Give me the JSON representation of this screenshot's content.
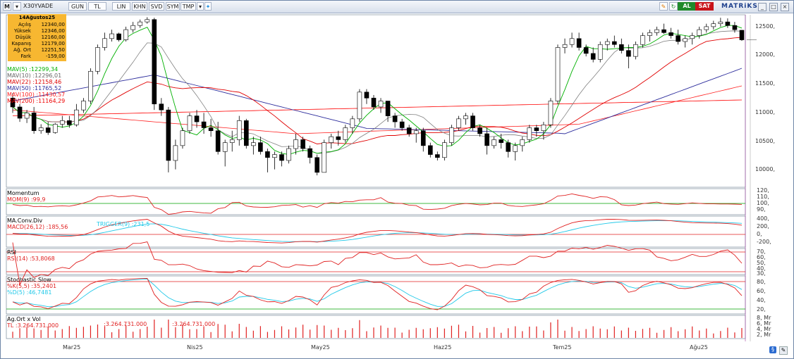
{
  "toolbar": {
    "symbol": "X30YVADE",
    "buttons": [
      "GUN",
      "TL",
      "LIN",
      "KHN",
      "SVD",
      "SYM",
      "TMP"
    ],
    "buy": "AL",
    "sell": "SAT",
    "brand": "MATRiKS"
  },
  "info_box": {
    "date": "14Ağustos25",
    "rows": [
      {
        "label": "Açılış",
        "value": "12340,00"
      },
      {
        "label": "Yüksek",
        "value": "12346,00"
      },
      {
        "label": "Düşük",
        "value": "12160,00"
      },
      {
        "label": "Kapanış",
        "value": "12179,00"
      },
      {
        "label": "Ağ. Ort",
        "value": "12251,50"
      },
      {
        "label": "Fark",
        "value": "-159,00"
      }
    ]
  },
  "indicator_labels": {
    "mav5": "MAV(5)",
    "mav5_val": ":12299,34",
    "mav10": "MAV(10)",
    "mav10_val": ":12296,01",
    "mav22": "MAV(22)",
    "mav22_val": ":12158,46",
    "mav50": "MAV(50)",
    "mav50_val": ":11765,52",
    "mav100": "MAV(100)",
    "mav100_val": ":11430,57",
    "mav200": "MAV(200)",
    "mav200_val": ":11164,29",
    "momentum": "Momentum",
    "mom": "MOM(9)",
    "mom_val": ":99,9",
    "macd_title": "MA.Conv.Div",
    "macd": "MACD(26,12)",
    "macd_val": ":185,56",
    "trigger": "TRIGGER(9)",
    "trigger_val": ":231,5",
    "rsi_title": "RSI",
    "rsi": "RSI(14)",
    "rsi_val": ":53,8068",
    "stoch_title": "Stochastic Slow",
    "k": "%K(5,5)",
    "k_val": ":35,2401",
    "d": "%D(5)",
    "d_val": ":46,7481",
    "vol_title": "Ag.Ort x Vol",
    "vol": "TL",
    "vol_val": ":3.264.731.000",
    "vol_val2": ":3.264.731.000",
    "vol_val3": ":3.264.731.000"
  },
  "axes": {
    "price_ticks": [
      "12500,",
      "12000,",
      "11500,",
      "11000,",
      "10500,",
      "10000,"
    ],
    "mom_ticks": [
      "120,",
      "110,",
      "100,",
      "90,"
    ],
    "macd_ticks": [
      "400,",
      "200,",
      "0,",
      "-200,"
    ],
    "rsi_ticks": [
      "70,",
      "60,",
      "50,",
      "40,",
      "30,"
    ],
    "stoch_ticks": [
      "80,",
      "60,",
      "40,",
      "20,"
    ],
    "vol_ticks": [
      "8, Mr",
      "6, Mr",
      "4, Mr",
      "2, Mr"
    ],
    "month_labels": [
      "Mar25",
      "Nis25",
      "May25",
      "Haz25",
      "Tem25",
      "Ağu25"
    ]
  },
  "colors": {
    "up": "#ffffff",
    "down": "#000000",
    "mav5": "#00b000",
    "mav10": "#808080",
    "mav22": "#e00000",
    "mav50": "#2c2c9c",
    "mav100": "#ff2020",
    "mav200": "#ff0000",
    "cyan": "#20c8e8",
    "red": "#e02020",
    "green": "#00a000"
  },
  "chart_data": {
    "type": "candlestick",
    "ylim": [
      9700,
      12600
    ],
    "series_ohlc": [
      [
        11200,
        11280,
        10950,
        11050
      ],
      [
        11050,
        11100,
        10800,
        10860
      ],
      [
        10860,
        11000,
        10780,
        10950
      ],
      [
        10950,
        11050,
        10600,
        10650
      ],
      [
        10650,
        10760,
        10600,
        10700
      ],
      [
        10700,
        10800,
        10580,
        10620
      ],
      [
        10620,
        10780,
        10600,
        10760
      ],
      [
        10760,
        10900,
        10700,
        10820
      ],
      [
        10820,
        10900,
        10700,
        10750
      ],
      [
        10750,
        11100,
        10720,
        11000
      ],
      [
        11000,
        11200,
        10950,
        11150
      ],
      [
        11150,
        11700,
        11100,
        11650
      ],
      [
        11650,
        12100,
        11600,
        12050
      ],
      [
        12050,
        12300,
        12000,
        12200
      ],
      [
        12200,
        12350,
        12150,
        12280
      ],
      [
        12280,
        12300,
        12150,
        12180
      ],
      [
        12180,
        12400,
        12150,
        12350
      ],
      [
        12350,
        12480,
        12300,
        12420
      ],
      [
        12420,
        12520,
        12380,
        12480
      ],
      [
        12480,
        12560,
        12450,
        12520
      ],
      [
        12520,
        12550,
        11000,
        11100
      ],
      [
        11100,
        11200,
        10900,
        11000
      ],
      [
        11000,
        11050,
        9950,
        10150
      ],
      [
        10150,
        10500,
        10000,
        10400
      ],
      [
        10400,
        10700,
        10350,
        10650
      ],
      [
        10650,
        10950,
        10600,
        10900
      ],
      [
        10900,
        11000,
        10700,
        10800
      ],
      [
        10800,
        10950,
        10600,
        10700
      ],
      [
        10700,
        10850,
        10550,
        10650
      ],
      [
        10650,
        10800,
        10250,
        10300
      ],
      [
        10300,
        10500,
        10050,
        10450
      ],
      [
        10450,
        10650,
        10300,
        10500
      ],
      [
        10500,
        10900,
        10400,
        10820
      ],
      [
        10820,
        10850,
        10350,
        10400
      ],
      [
        10400,
        10550,
        10250,
        10450
      ],
      [
        10450,
        10550,
        10250,
        10300
      ],
      [
        10300,
        10350,
        9950,
        10200
      ],
      [
        10200,
        10300,
        10000,
        10250
      ],
      [
        10250,
        10300,
        10050,
        10150
      ],
      [
        10150,
        10400,
        10100,
        10350
      ],
      [
        10350,
        10600,
        10250,
        10500
      ],
      [
        10500,
        10550,
        10300,
        10350
      ],
      [
        10350,
        10400,
        10100,
        10200
      ],
      [
        10200,
        10250,
        9900,
        9950
      ],
      [
        9950,
        10500,
        9950,
        10450
      ],
      [
        10450,
        10600,
        10350,
        10550
      ],
      [
        10550,
        10650,
        10400,
        10500
      ],
      [
        10500,
        10750,
        10450,
        10700
      ],
      [
        10700,
        10900,
        10600,
        10850
      ],
      [
        10850,
        11350,
        10800,
        11300
      ],
      [
        11300,
        11350,
        11100,
        11200
      ],
      [
        11200,
        11250,
        11000,
        11050
      ],
      [
        11050,
        11200,
        10950,
        11150
      ],
      [
        11150,
        11150,
        10800,
        10900
      ],
      [
        10900,
        10950,
        10700,
        10800
      ],
      [
        10800,
        10850,
        10650,
        10700
      ],
      [
        10700,
        10750,
        10550,
        10600
      ],
      [
        10600,
        10700,
        10450,
        10650
      ],
      [
        10650,
        10700,
        10300,
        10400
      ],
      [
        10400,
        10450,
        10200,
        10250
      ],
      [
        10250,
        10300,
        10150,
        10200
      ],
      [
        10200,
        10500,
        10150,
        10450
      ],
      [
        10450,
        10750,
        10400,
        10700
      ],
      [
        10700,
        10900,
        10650,
        10850
      ],
      [
        10850,
        10950,
        10750,
        10900
      ],
      [
        10900,
        10950,
        10650,
        10700
      ],
      [
        10700,
        10750,
        10550,
        10600
      ],
      [
        10600,
        10700,
        10250,
        10400
      ],
      [
        10400,
        10550,
        10350,
        10500
      ],
      [
        10500,
        10600,
        10350,
        10450
      ],
      [
        10450,
        10500,
        10200,
        10300
      ],
      [
        10300,
        10450,
        10150,
        10400
      ],
      [
        10400,
        10550,
        10300,
        10500
      ],
      [
        10500,
        10750,
        10450,
        10700
      ],
      [
        10700,
        10750,
        10550,
        10650
      ],
      [
        10650,
        10800,
        10500,
        10750
      ],
      [
        10750,
        11200,
        10700,
        11150
      ],
      [
        11150,
        12100,
        11100,
        12050
      ],
      [
        12050,
        12200,
        11950,
        12100
      ],
      [
        12100,
        12300,
        12050,
        12200
      ],
      [
        12200,
        12300,
        12000,
        12050
      ],
      [
        12050,
        12100,
        11900,
        11950
      ],
      [
        11950,
        12050,
        11800,
        11850
      ],
      [
        11850,
        12150,
        11800,
        12100
      ],
      [
        12100,
        12200,
        12000,
        12150
      ],
      [
        12150,
        12250,
        12050,
        12100
      ],
      [
        12100,
        12200,
        11950,
        12000
      ],
      [
        12000,
        12100,
        11700,
        11900
      ],
      [
        11900,
        12150,
        11850,
        12100
      ],
      [
        12100,
        12300,
        12050,
        12250
      ],
      [
        12250,
        12350,
        12150,
        12300
      ],
      [
        12300,
        12400,
        12250,
        12350
      ],
      [
        12350,
        12450,
        12280,
        12300
      ],
      [
        12300,
        12380,
        12200,
        12250
      ],
      [
        12250,
        12350,
        12100,
        12150
      ],
      [
        12150,
        12250,
        12050,
        12200
      ],
      [
        12200,
        12300,
        12100,
        12250
      ],
      [
        12250,
        12400,
        12200,
        12350
      ],
      [
        12350,
        12450,
        12300,
        12400
      ],
      [
        12400,
        12500,
        12350,
        12450
      ],
      [
        12450,
        12550,
        12400,
        12480
      ],
      [
        12480,
        12540,
        12380,
        12420
      ],
      [
        12420,
        12480,
        12300,
        12350
      ],
      [
        12340,
        12346,
        12160,
        12179
      ]
    ]
  }
}
